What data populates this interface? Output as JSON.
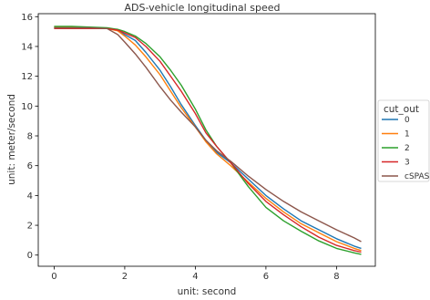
{
  "chart_data": {
    "type": "line",
    "title": "ADS-vehicle longitudinal speed",
    "xlabel": "unit: second",
    "ylabel": "unit: meter/second",
    "xlim": [
      -0.45,
      9.1
    ],
    "ylim": [
      -0.75,
      16.2
    ],
    "xticks": [
      0,
      2,
      4,
      6,
      8
    ],
    "yticks": [
      0,
      2,
      4,
      6,
      8,
      10,
      12,
      14,
      16
    ],
    "grid": false,
    "legend": {
      "title": "cut_out",
      "placement": "right-outside"
    },
    "series": [
      {
        "name": "0",
        "color": "#1f77b4",
        "x": [
          0,
          0.5,
          1.0,
          1.5,
          1.8,
          2.0,
          2.3,
          2.6,
          3.0,
          3.3,
          3.6,
          4.0,
          4.3,
          4.6,
          5.0,
          5.5,
          6.0,
          6.5,
          7.0,
          7.5,
          8.0,
          8.5,
          8.7
        ],
        "y": [
          15.25,
          15.25,
          15.25,
          15.2,
          15.1,
          14.8,
          14.4,
          13.6,
          12.4,
          11.3,
          10.1,
          8.7,
          7.7,
          6.9,
          6.2,
          5.1,
          4.0,
          3.1,
          2.3,
          1.7,
          1.1,
          0.6,
          0.45
        ]
      },
      {
        "name": "1",
        "color": "#ff7f0e",
        "x": [
          0,
          0.5,
          1.0,
          1.5,
          1.8,
          2.0,
          2.3,
          2.6,
          3.0,
          3.3,
          3.6,
          4.0,
          4.3,
          4.6,
          5.0,
          5.5,
          6.0,
          6.5,
          7.0,
          7.5,
          8.0,
          8.5,
          8.7
        ],
        "y": [
          15.3,
          15.3,
          15.25,
          15.2,
          15.05,
          14.7,
          14.1,
          13.3,
          12.1,
          11.0,
          9.9,
          8.6,
          7.6,
          6.8,
          6.0,
          4.9,
          3.8,
          2.9,
          2.1,
          1.5,
          0.9,
          0.45,
          0.3
        ]
      },
      {
        "name": "2",
        "color": "#2ca02c",
        "x": [
          0,
          0.5,
          1.0,
          1.5,
          1.8,
          2.0,
          2.3,
          2.6,
          3.0,
          3.3,
          3.6,
          4.0,
          4.3,
          4.6,
          5.0,
          5.5,
          6.0,
          6.5,
          7.0,
          7.5,
          8.0,
          8.5,
          8.7
        ],
        "y": [
          15.35,
          15.35,
          15.3,
          15.25,
          15.15,
          15.0,
          14.7,
          14.2,
          13.3,
          12.4,
          11.4,
          9.8,
          8.4,
          7.3,
          6.2,
          4.6,
          3.2,
          2.3,
          1.6,
          0.95,
          0.45,
          0.15,
          0.05
        ]
      },
      {
        "name": "3",
        "color": "#d62728",
        "x": [
          0,
          0.5,
          1.0,
          1.5,
          1.8,
          2.0,
          2.3,
          2.6,
          3.0,
          3.3,
          3.6,
          4.0,
          4.3,
          4.6,
          5.0,
          5.5,
          6.0,
          6.5,
          7.0,
          7.5,
          8.0,
          8.5,
          8.7
        ],
        "y": [
          15.2,
          15.2,
          15.2,
          15.2,
          15.1,
          14.9,
          14.6,
          14.0,
          13.0,
          12.0,
          11.0,
          9.5,
          8.2,
          7.3,
          6.2,
          4.8,
          3.6,
          2.7,
          1.9,
          1.2,
          0.65,
          0.3,
          0.2
        ]
      },
      {
        "name": "cSPAS",
        "color": "#8c564b",
        "x": [
          0,
          0.5,
          1.0,
          1.5,
          1.8,
          2.0,
          2.3,
          2.6,
          3.0,
          3.3,
          3.6,
          4.0,
          4.3,
          4.6,
          5.0,
          5.5,
          6.0,
          6.5,
          7.0,
          7.5,
          8.0,
          8.5,
          8.7
        ],
        "y": [
          15.25,
          15.25,
          15.25,
          15.2,
          14.8,
          14.3,
          13.5,
          12.6,
          11.3,
          10.4,
          9.6,
          8.6,
          7.7,
          7.0,
          6.3,
          5.3,
          4.4,
          3.6,
          2.9,
          2.3,
          1.7,
          1.15,
          0.9
        ]
      }
    ]
  }
}
